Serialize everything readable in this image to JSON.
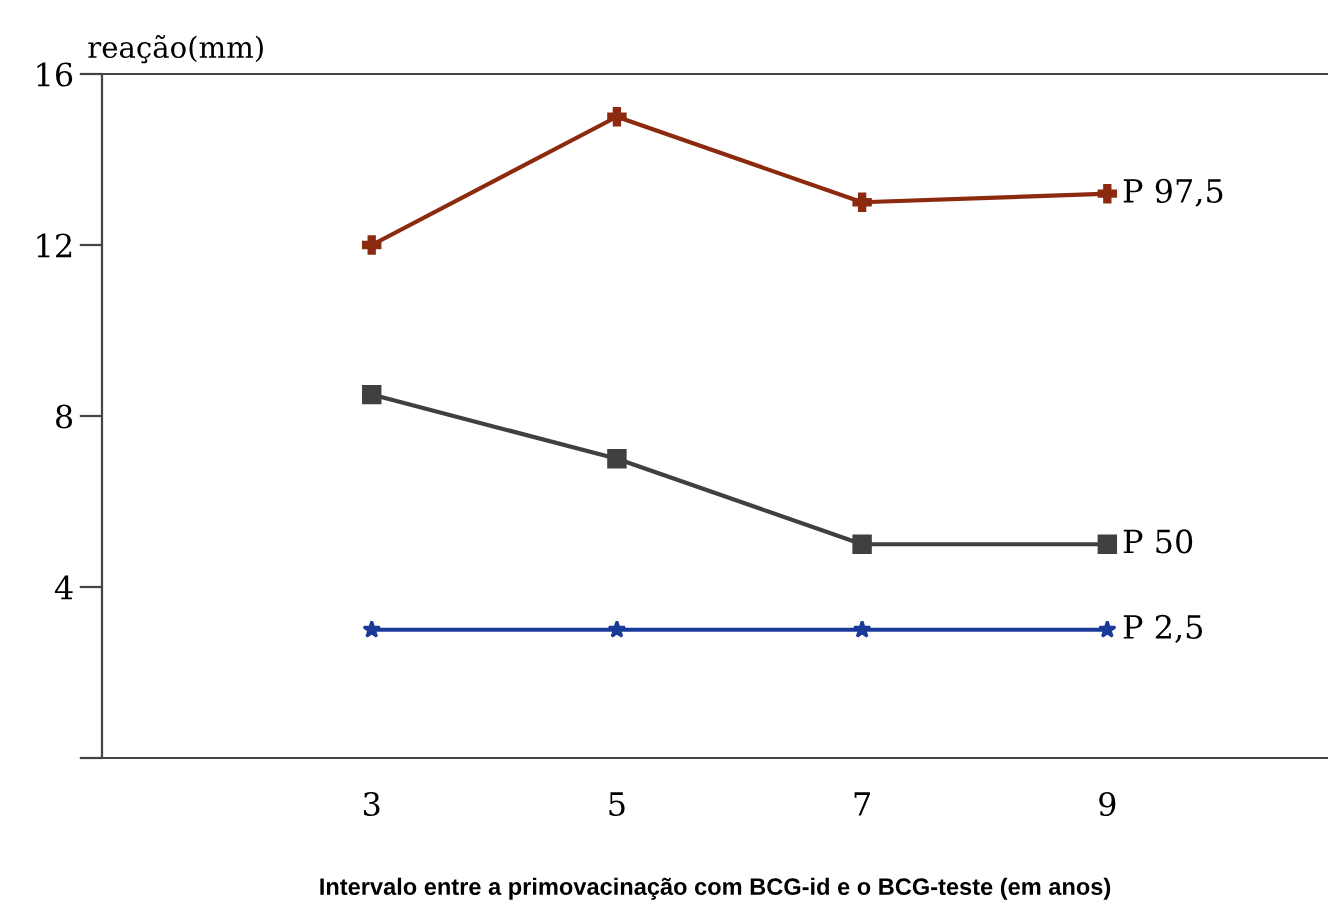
{
  "chart_data": {
    "type": "line",
    "ylabel": "reação(mm)",
    "xlabel": "Intervalo entre a primovacinação com BCG-id e o BCG-teste (em anos)",
    "x": [
      3,
      5,
      7,
      9
    ],
    "series": [
      {
        "name": "P 97,5",
        "color": "#8b2a0e",
        "marker": "cross",
        "values": [
          12,
          15,
          13,
          13.2
        ]
      },
      {
        "name": "P 50",
        "color": "#404040",
        "marker": "square",
        "values": [
          8.5,
          7,
          5,
          5
        ]
      },
      {
        "name": "P 2,5",
        "color": "#1a3a9a",
        "marker": "star",
        "values": [
          3,
          3,
          3,
          3
        ]
      }
    ],
    "xlim": [
      0.8,
      10.8
    ],
    "xticks": [
      3,
      5,
      7,
      9
    ],
    "ylim": [
      0,
      16
    ],
    "yticks": [
      {
        "value": 0,
        "label": null
      },
      4,
      8,
      12,
      16
    ],
    "grid": false,
    "legend": false,
    "line_style": "solid"
  }
}
